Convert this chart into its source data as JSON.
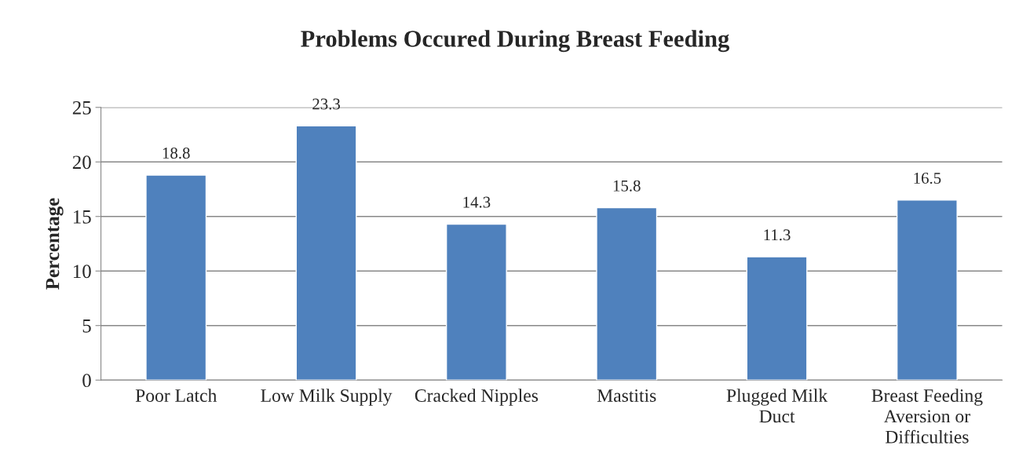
{
  "chart_data": {
    "type": "bar",
    "title": "Problems Occured During Breast Feeding",
    "ylabel": "Percentage",
    "categories": [
      "Poor Latch",
      "Low Milk Supply",
      "Cracked Nipples",
      "Mastitis",
      "Plugged Milk\nDuct",
      "Breast Feeding\nAversion or\nDifficulties"
    ],
    "values": [
      18.8,
      23.3,
      14.3,
      15.8,
      11.3,
      16.5
    ],
    "color": "#4f81bd",
    "ylim": [
      0,
      25
    ],
    "yticks": [
      0,
      5,
      10,
      15,
      20,
      25
    ],
    "grid": "y",
    "data_labels": true,
    "legend": false
  }
}
